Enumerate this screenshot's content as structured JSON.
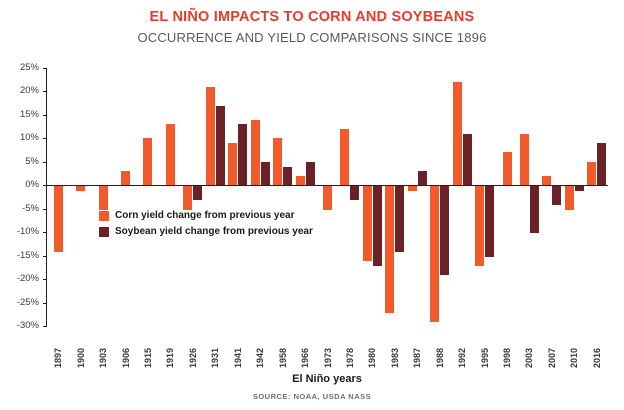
{
  "header": {
    "title": "EL NIÑO IMPACTS TO CORN AND SOYBEANS",
    "subtitle": "OCCURRENCE AND YIELD COMPARISONS SINCE 1896"
  },
  "chart_data": {
    "type": "bar",
    "title": "EL NIÑO IMPACTS TO CORN AND SOYBEANS",
    "subtitle": "OCCURRENCE AND YIELD COMPARISONS SINCE 1896",
    "xlabel": "El Niño years",
    "ylabel": "",
    "source": "SOURCE: NOAA, USDA NASS",
    "ylim": [
      -30,
      25
    ],
    "ytick_values": [
      25,
      20,
      15,
      10,
      5,
      0,
      -5,
      -10,
      -15,
      -20,
      -25,
      -30
    ],
    "ytick_labels": [
      "25%",
      "20%",
      "15%",
      "10%",
      "5%",
      "0%",
      "-5%",
      "-10%",
      "-15%",
      "-20%",
      "-25%",
      "-30%"
    ],
    "grid": false,
    "legend_position": "inside-left",
    "categories": [
      "1897",
      "1900",
      "1903",
      "1906",
      "1915",
      "1919",
      "1926",
      "1931",
      "1941",
      "1942",
      "1958",
      "1966",
      "1973",
      "1978",
      "1980",
      "1983",
      "1987",
      "1988",
      "1992",
      "1995",
      "1998",
      "2003",
      "2007",
      "2010",
      "2016"
    ],
    "series": [
      {
        "name": "Corn yield change from previous year",
        "color": "#F15B2B",
        "values": [
          -14,
          -1,
          -5,
          3,
          10,
          13,
          -5,
          21,
          9,
          14,
          10,
          2,
          -5,
          12,
          -16,
          -27,
          -1,
          -29,
          22,
          -17,
          7,
          11,
          2,
          -5,
          5
        ]
      },
      {
        "name": "Soybean yield change from previous year",
        "color": "#6B2227",
        "values": [
          null,
          null,
          null,
          null,
          null,
          null,
          -3,
          17,
          13,
          5,
          4,
          5,
          null,
          -3,
          -17,
          -14,
          3,
          -19,
          11,
          -15,
          null,
          -10,
          -4,
          -1,
          9
        ]
      }
    ]
  }
}
